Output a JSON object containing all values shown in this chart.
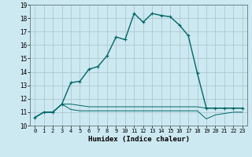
{
  "title": "",
  "xlabel": "Humidex (Indice chaleur)",
  "bg_color": "#cce8f0",
  "line_color": "#006666",
  "grid_color": "#b0c8d0",
  "xlim": [
    -0.5,
    23.5
  ],
  "ylim": [
    10.0,
    19.0
  ],
  "xticks": [
    0,
    1,
    2,
    3,
    4,
    5,
    6,
    7,
    8,
    9,
    10,
    11,
    12,
    13,
    14,
    15,
    16,
    17,
    18,
    19,
    20,
    21,
    22,
    23
  ],
  "yticks": [
    10,
    11,
    12,
    13,
    14,
    15,
    16,
    17,
    18,
    19
  ],
  "main_x": [
    0,
    1,
    2,
    3,
    4,
    5,
    6,
    7,
    8,
    9,
    10,
    11,
    12,
    13,
    14,
    15,
    16,
    17,
    18,
    19,
    20,
    21,
    22,
    23
  ],
  "main_y": [
    10.6,
    11.0,
    11.0,
    11.6,
    13.2,
    13.3,
    14.2,
    14.4,
    15.2,
    16.6,
    16.4,
    18.35,
    17.7,
    18.35,
    18.2,
    18.1,
    17.5,
    16.7,
    13.9,
    11.3,
    11.3,
    11.3,
    11.3,
    11.3
  ],
  "series2_x": [
    0,
    1,
    2,
    3,
    4,
    5,
    6,
    7,
    8,
    9,
    10,
    11,
    12,
    13,
    14,
    15,
    16,
    17,
    18,
    19,
    20,
    21,
    22,
    23
  ],
  "series2_y": [
    10.6,
    11.0,
    11.0,
    11.6,
    11.6,
    11.5,
    11.4,
    11.4,
    11.4,
    11.4,
    11.4,
    11.4,
    11.4,
    11.4,
    11.4,
    11.4,
    11.4,
    11.4,
    11.4,
    11.3,
    11.3,
    11.3,
    11.3,
    11.3
  ],
  "series3_x": [
    0,
    1,
    2,
    3,
    4,
    5,
    6,
    7,
    8,
    9,
    10,
    11,
    12,
    13,
    14,
    15,
    16,
    17,
    18,
    19,
    20,
    21,
    22,
    23
  ],
  "series3_y": [
    10.6,
    11.0,
    11.0,
    11.6,
    11.2,
    11.1,
    11.1,
    11.1,
    11.1,
    11.1,
    11.1,
    11.1,
    11.1,
    11.1,
    11.1,
    11.1,
    11.1,
    11.1,
    11.1,
    10.5,
    10.8,
    10.9,
    11.0,
    11.0
  ]
}
